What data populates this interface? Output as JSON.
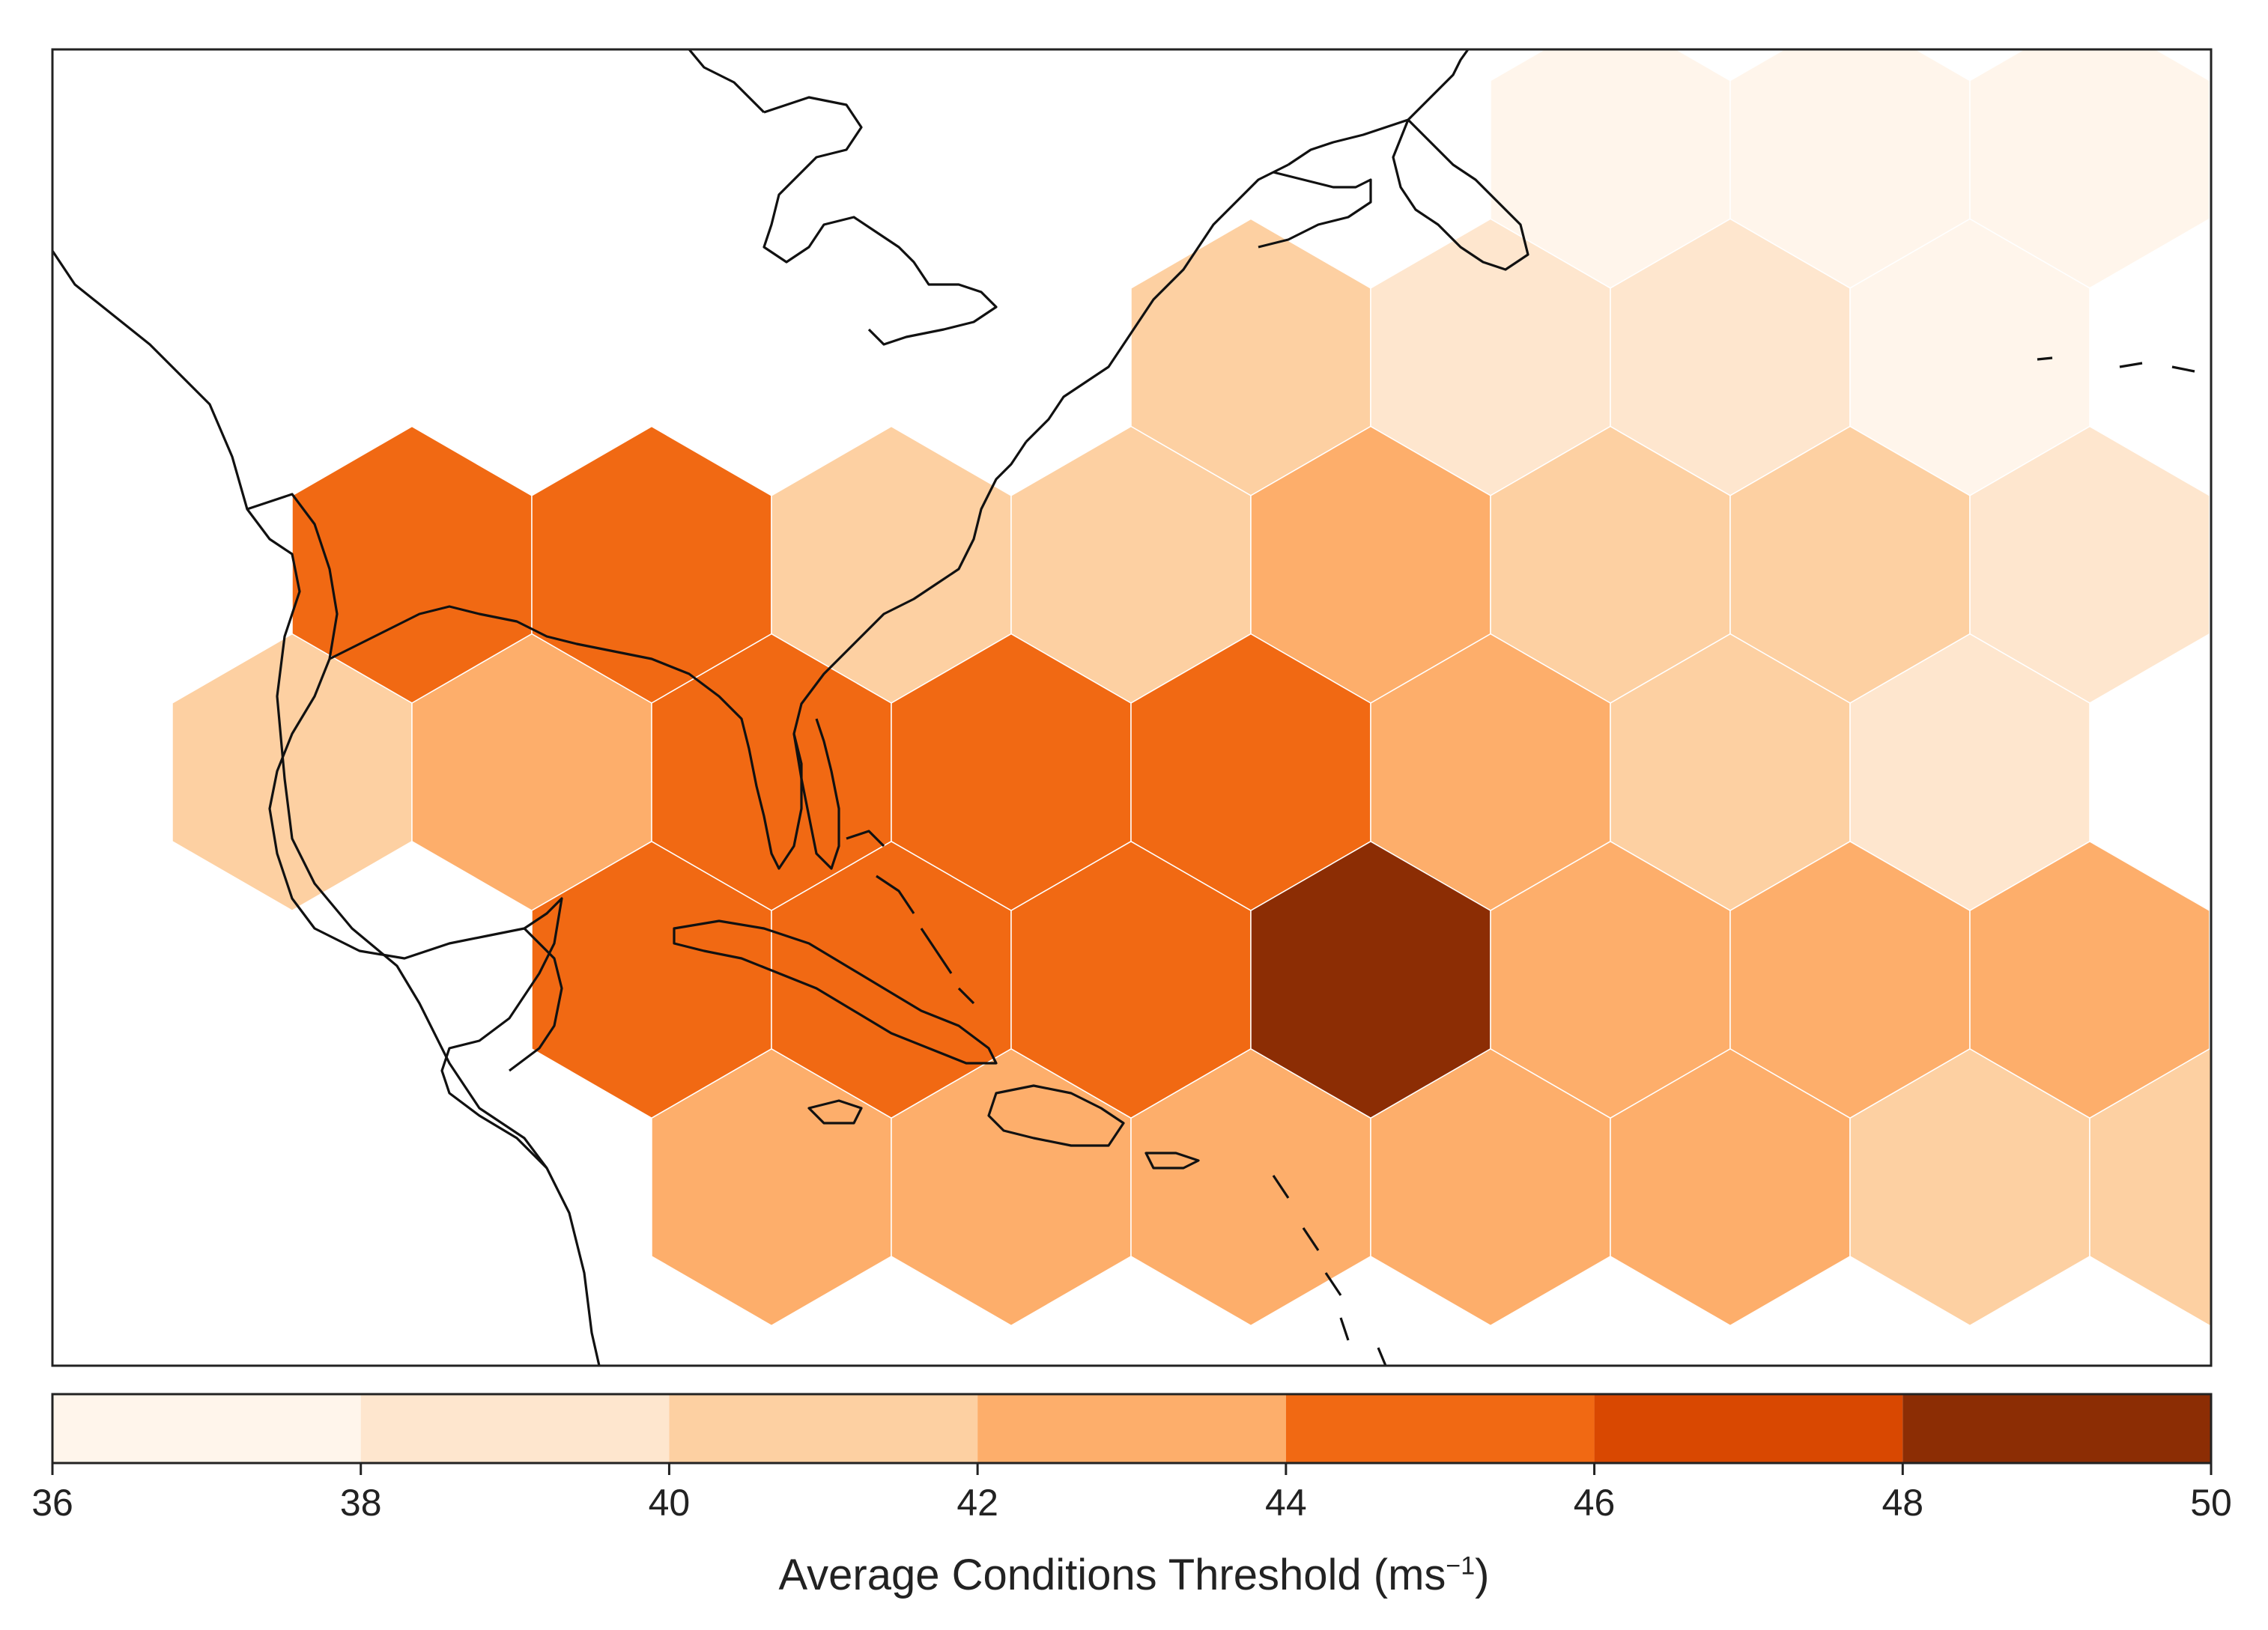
{
  "colorbar": {
    "bins": [
      {
        "from": 36,
        "to": 38,
        "color": "#fff5eb"
      },
      {
        "from": 38,
        "to": 40,
        "color": "#fee6ce"
      },
      {
        "from": 40,
        "to": 42,
        "color": "#fdd0a2"
      },
      {
        "from": 42,
        "to": 44,
        "color": "#fdae6b"
      },
      {
        "from": 44,
        "to": 46,
        "color": "#f16913"
      },
      {
        "from": 46,
        "to": 48,
        "color": "#d94801"
      },
      {
        "from": 48,
        "to": 50,
        "color": "#8c2d04"
      }
    ],
    "ticks": [
      "36",
      "38",
      "40",
      "42",
      "44",
      "46",
      "48",
      "50"
    ],
    "label_main": "Average Conditions Threshold (ms",
    "label_sup": "−1",
    "label_end": ")"
  },
  "chart_data": {
    "type": "heatmap",
    "title": "",
    "xlabel": "Average Conditions Threshold (ms−1)",
    "value_range": [
      36,
      50
    ],
    "grid": "hexagonal bins over the North Atlantic / Caribbean region",
    "rows": [
      {
        "row": 0,
        "values": [
          {
            "col": 6,
            "bin": "36-38"
          },
          {
            "col": 7,
            "bin": "36-38"
          },
          {
            "col": 8,
            "bin": "36-38"
          }
        ]
      },
      {
        "row": 1,
        "values": [
          {
            "col": 4.5,
            "bin": "40-42"
          },
          {
            "col": 5.5,
            "bin": "38-40"
          },
          {
            "col": 6.5,
            "bin": "38-40"
          },
          {
            "col": 7.5,
            "bin": "36-38"
          }
        ]
      },
      {
        "row": 2,
        "values": [
          {
            "col": 1,
            "bin": "44-46"
          },
          {
            "col": 2,
            "bin": "44-46"
          },
          {
            "col": 3,
            "bin": "40-42"
          },
          {
            "col": 4,
            "bin": "40-42"
          },
          {
            "col": 5,
            "bin": "42-44"
          },
          {
            "col": 6,
            "bin": "40-42"
          },
          {
            "col": 7,
            "bin": "40-42"
          },
          {
            "col": 8,
            "bin": "38-40"
          }
        ]
      },
      {
        "row": 3,
        "values": [
          {
            "col": 0.5,
            "bin": "40-42"
          },
          {
            "col": 1.5,
            "bin": "42-44"
          },
          {
            "col": 2.5,
            "bin": "44-46"
          },
          {
            "col": 3.5,
            "bin": "44-46"
          },
          {
            "col": 4.5,
            "bin": "44-46"
          },
          {
            "col": 5.5,
            "bin": "42-44"
          },
          {
            "col": 6.5,
            "bin": "40-42"
          },
          {
            "col": 7.5,
            "bin": "38-40"
          }
        ]
      },
      {
        "row": 4,
        "values": [
          {
            "col": 2,
            "bin": "44-46"
          },
          {
            "col": 3,
            "bin": "44-46"
          },
          {
            "col": 4,
            "bin": "44-46"
          },
          {
            "col": 5,
            "bin": "48-50"
          },
          {
            "col": 6,
            "bin": "42-44"
          },
          {
            "col": 7,
            "bin": "42-44"
          },
          {
            "col": 8,
            "bin": "42-44"
          }
        ]
      },
      {
        "row": 5,
        "values": [
          {
            "col": 2.5,
            "bin": "42-44"
          },
          {
            "col": 3.5,
            "bin": "42-44"
          },
          {
            "col": 4.5,
            "bin": "42-44"
          },
          {
            "col": 5.5,
            "bin": "42-44"
          },
          {
            "col": 6.5,
            "bin": "42-44"
          },
          {
            "col": 7.5,
            "bin": "40-42"
          },
          {
            "col": 8.5,
            "bin": "40-42"
          }
        ]
      }
    ]
  }
}
